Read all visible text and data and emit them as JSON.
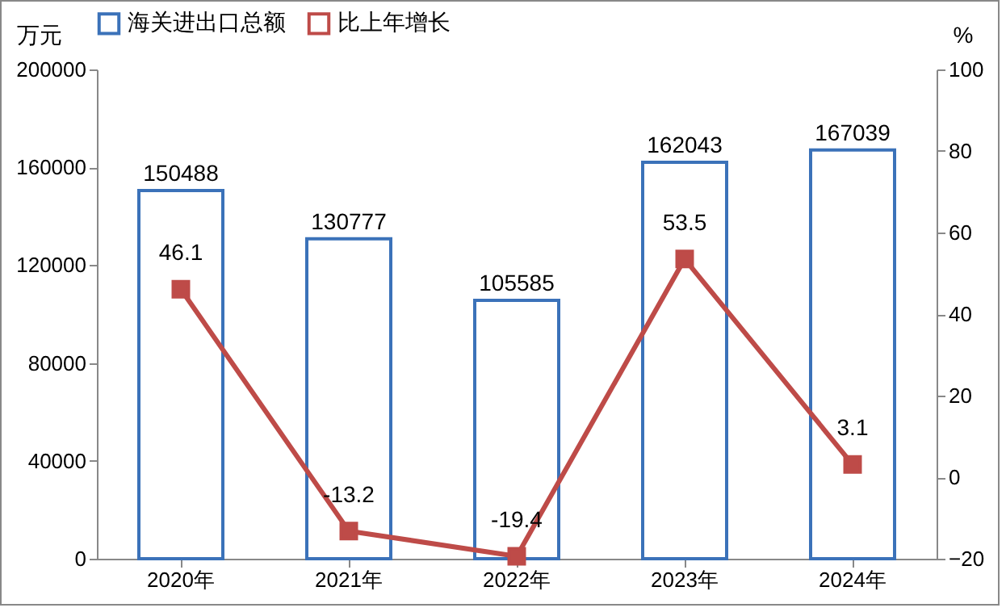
{
  "chart_data": {
    "type": "bar",
    "categories": [
      "2020年",
      "2021年",
      "2022年",
      "2023年",
      "2024年"
    ],
    "series": [
      {
        "name": "海关进出口总额",
        "color": "#3b72b9",
        "values": [
          150488,
          130777,
          105585,
          162043,
          167039
        ]
      },
      {
        "name": "比上年增长",
        "type": "line",
        "axis": "y2",
        "color": "#be4b48",
        "values": [
          46.1,
          -13.2,
          -19.4,
          53.5,
          3.1
        ]
      }
    ],
    "ylabel": "万元",
    "y2label": "%",
    "ylim": [
      0,
      200000
    ],
    "yticks": [
      0,
      40000,
      80000,
      120000,
      160000,
      200000
    ],
    "y2lim": [
      -20,
      100
    ],
    "y2ticks": [
      -20,
      0,
      20,
      40,
      60,
      80,
      100
    ],
    "data_labels": true,
    "legend": "top",
    "marker": "square",
    "line_style": "solid"
  }
}
